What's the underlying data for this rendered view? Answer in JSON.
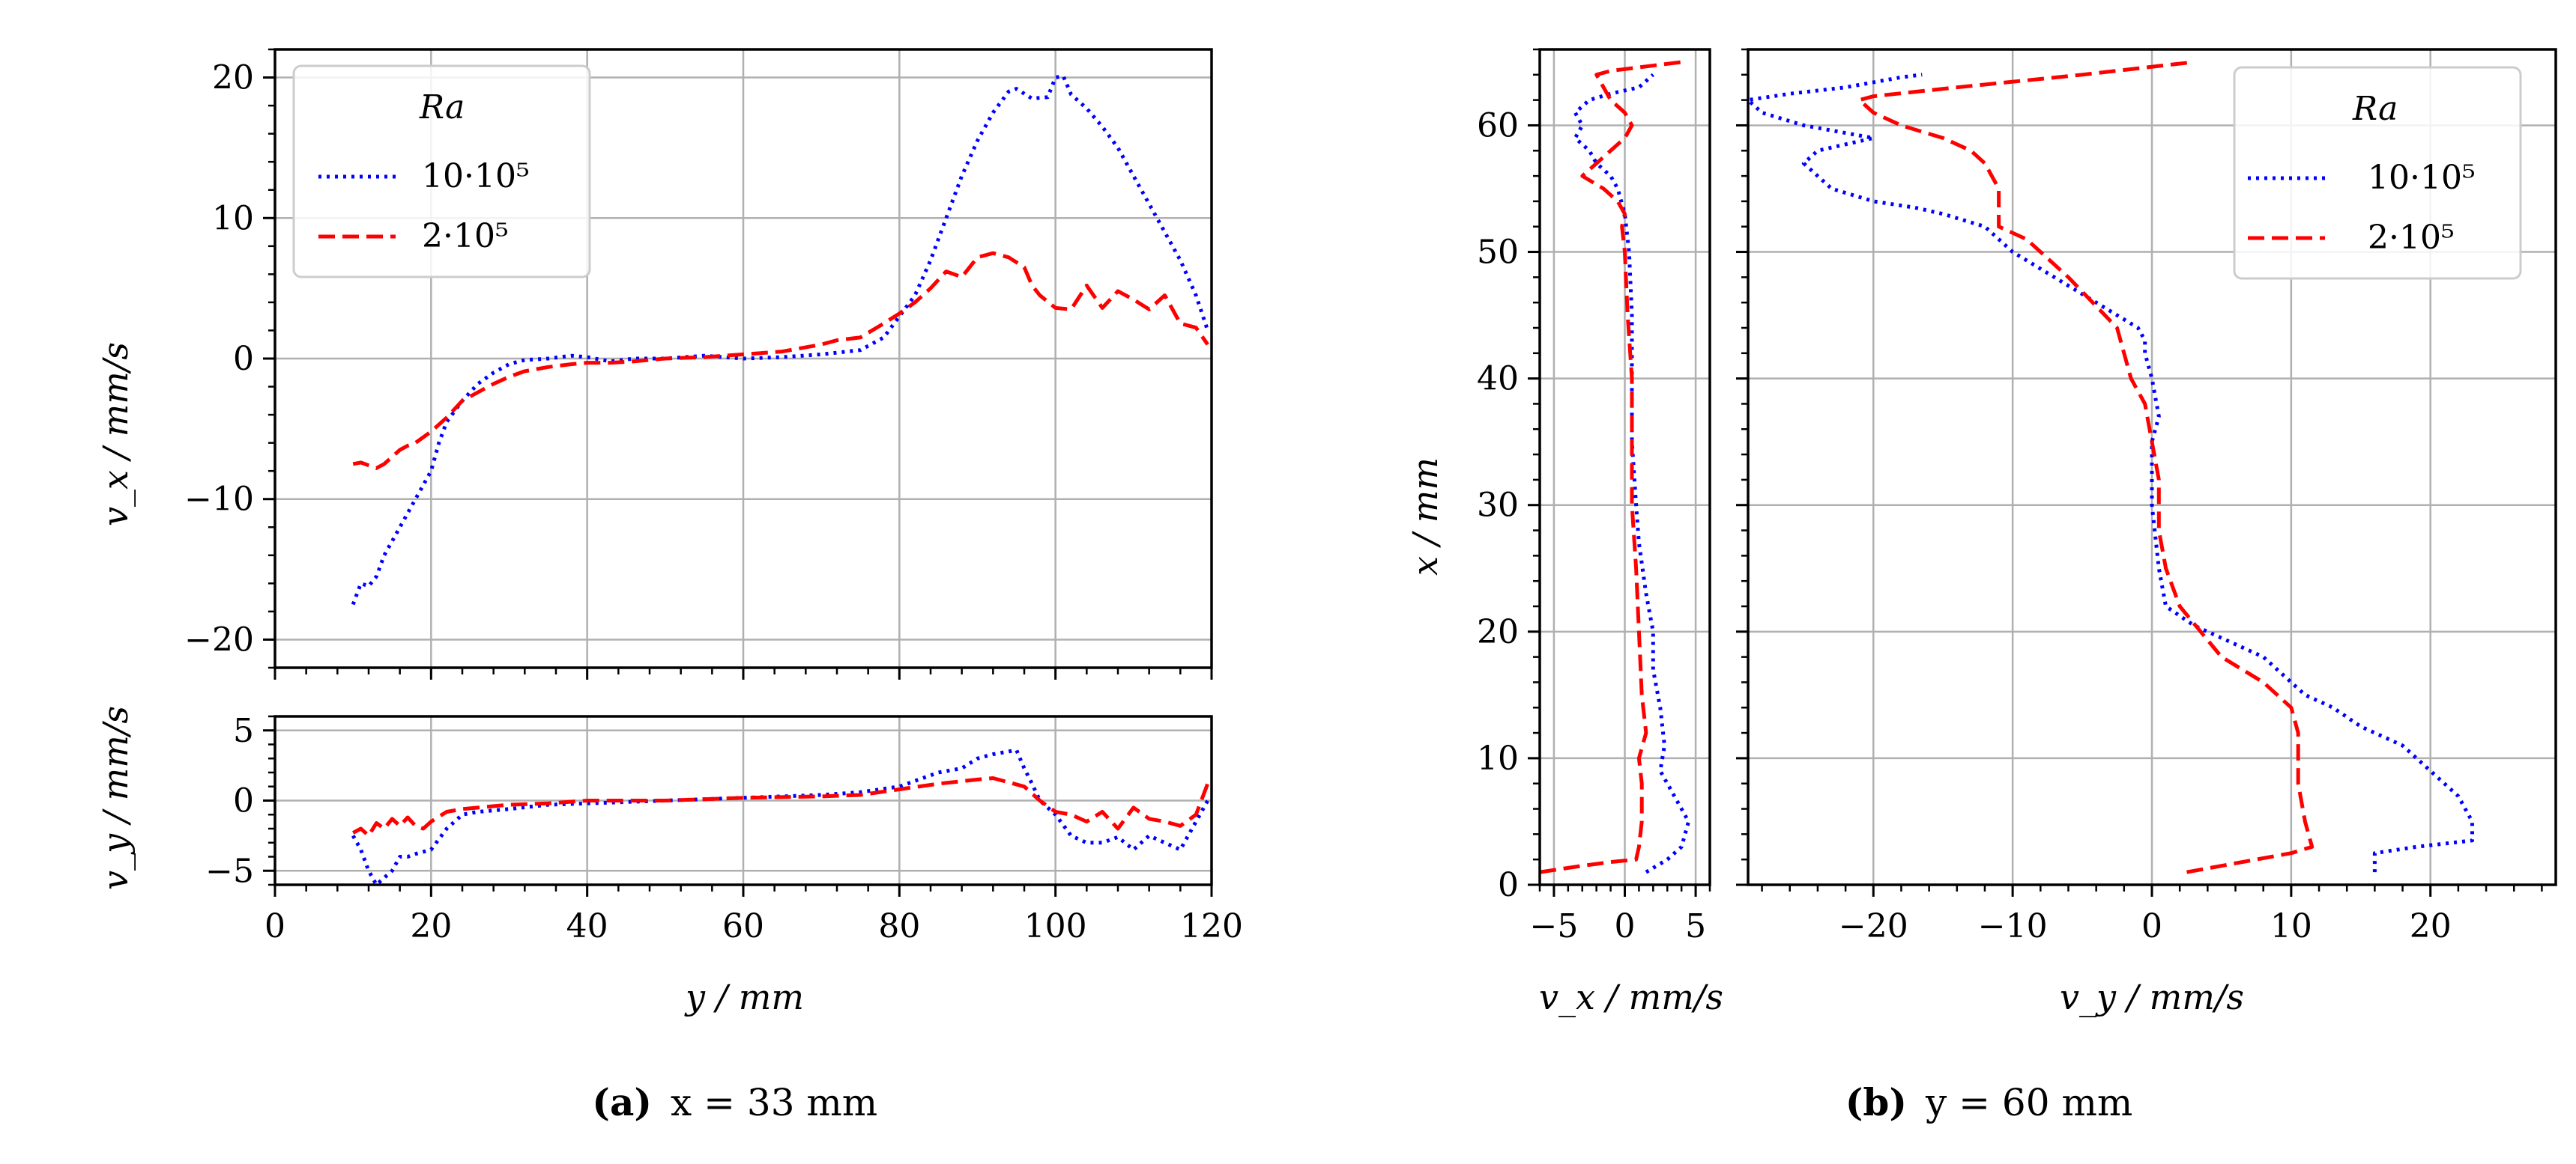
{
  "legend": {
    "title": "Ra",
    "entries": [
      {
        "label": "10·10⁵",
        "color": "#0000ff",
        "style": "dotted"
      },
      {
        "label": "2·10⁵",
        "color": "#ff0000",
        "style": "dashed"
      }
    ]
  },
  "captions": {
    "a": {
      "letter": "(a)",
      "text": "x = 33 mm"
    },
    "b": {
      "letter": "(b)",
      "text": "y = 60 mm"
    }
  },
  "axis_labels": {
    "a_top_y": "v_x / mm/s",
    "a_bottom_y": "v_y / mm/s",
    "a_x": "y / mm",
    "b_y": "x / mm",
    "b_left_x": "v_x / mm/s",
    "b_right_x": "v_y / mm/s"
  },
  "chart_data": [
    {
      "id": "a_top",
      "type": "line",
      "title": "",
      "xlabel": "",
      "ylabel": "v_x / mm/s",
      "xlim": [
        0,
        120
      ],
      "ylim": [
        -22,
        22
      ],
      "xticks": [
        0,
        20,
        40,
        60,
        80,
        100,
        120
      ],
      "yticks": [
        -20,
        -10,
        0,
        10,
        20
      ],
      "ytick_labels": [
        "−20",
        "−10",
        "0",
        "10",
        "20"
      ],
      "grid": true,
      "legend": "top-left",
      "series": [
        {
          "name": "10·10⁵",
          "color": "#0000ff",
          "style": "dotted",
          "x": [
            10,
            11,
            12,
            13,
            14,
            15,
            16,
            17,
            18,
            19,
            20,
            21,
            22,
            24,
            26,
            28,
            30,
            32,
            35,
            38,
            40,
            43,
            46,
            50,
            55,
            60,
            65,
            70,
            75,
            78,
            80,
            82,
            84,
            86,
            88,
            90,
            92,
            94,
            95,
            97,
            99,
            100,
            101,
            102,
            104,
            106,
            108,
            110,
            112,
            114,
            116,
            118,
            119.5
          ],
          "y": [
            -17.5,
            -16,
            -16.2,
            -15.5,
            -14,
            -13,
            -12,
            -11,
            -10,
            -9,
            -8,
            -6,
            -4.5,
            -3,
            -1.8,
            -1,
            -0.4,
            -0.1,
            0,
            0.2,
            0.1,
            -0.2,
            0,
            0,
            0.2,
            0,
            0.1,
            0.3,
            0.6,
            1.5,
            3,
            4.5,
            7,
            10,
            13,
            15.5,
            17.5,
            19,
            19.2,
            18.5,
            18.6,
            20,
            20.1,
            18.8,
            17.8,
            16.5,
            15,
            13,
            11,
            9,
            7,
            4.5,
            2
          ]
        },
        {
          "name": "2·10⁵",
          "color": "#ff0000",
          "style": "dashed",
          "x": [
            10,
            11,
            12,
            13,
            14,
            15,
            16,
            17,
            18,
            20,
            22,
            24,
            26,
            28,
            30,
            32,
            35,
            38,
            40,
            43,
            46,
            50,
            55,
            60,
            65,
            70,
            72,
            75,
            78,
            80,
            82,
            84,
            86,
            88,
            90,
            92,
            94,
            96,
            97,
            98,
            100,
            102,
            104,
            106,
            108,
            110,
            112,
            114,
            116,
            118,
            119.5
          ],
          "y": [
            -7.5,
            -7.4,
            -7.6,
            -7.8,
            -7.5,
            -7,
            -6.5,
            -6.2,
            -6,
            -5.2,
            -4.2,
            -3,
            -2.4,
            -1.8,
            -1.3,
            -0.9,
            -0.6,
            -0.4,
            -0.3,
            -0.3,
            -0.2,
            0,
            0.1,
            0.3,
            0.5,
            1,
            1.3,
            1.5,
            2.5,
            3.2,
            4,
            5,
            6.2,
            5.8,
            7.2,
            7.5,
            7.2,
            6.5,
            5.2,
            4.5,
            3.6,
            3.5,
            5.2,
            3.6,
            4.8,
            4.2,
            3.5,
            4.5,
            2.5,
            2.2,
            1
          ]
        }
      ]
    },
    {
      "id": "a_bottom",
      "type": "line",
      "xlabel": "y / mm",
      "ylabel": "v_y / mm/s",
      "xlim": [
        0,
        120
      ],
      "ylim": [
        -6,
        6
      ],
      "xticks": [
        0,
        20,
        40,
        60,
        80,
        100,
        120
      ],
      "xtick_labels": [
        "0",
        "20",
        "40",
        "60",
        "80",
        "100",
        "120"
      ],
      "yticks": [
        -5,
        0,
        5
      ],
      "ytick_labels": [
        "−5",
        "0",
        "5"
      ],
      "grid": true,
      "series": [
        {
          "name": "10·10⁵",
          "color": "#0000ff",
          "style": "dotted",
          "x": [
            10,
            11,
            12,
            13,
            14,
            15,
            16,
            17,
            18,
            20,
            22,
            24,
            26,
            30,
            35,
            40,
            50,
            60,
            70,
            75,
            80,
            85,
            88,
            90,
            92,
            94,
            95,
            96,
            97,
            98,
            100,
            102,
            104,
            106,
            108,
            110,
            112,
            114,
            116,
            118,
            119.5
          ],
          "y": [
            -2.5,
            -3.5,
            -5,
            -6,
            -5.5,
            -5,
            -4,
            -4,
            -3.8,
            -3.5,
            -2,
            -1,
            -0.8,
            -0.6,
            -0.3,
            -0.2,
            0,
            0.2,
            0.4,
            0.6,
            1,
            2,
            2.3,
            3,
            3.3,
            3.5,
            3.6,
            2.3,
            1.2,
            0,
            -1,
            -2.5,
            -3,
            -3,
            -2.6,
            -3.5,
            -2.5,
            -3,
            -3.5,
            -1.5,
            0
          ]
        },
        {
          "name": "2·10⁵",
          "color": "#ff0000",
          "style": "dashed",
          "x": [
            10,
            11,
            12,
            13,
            14,
            15,
            16,
            17,
            18,
            19,
            20,
            22,
            24,
            26,
            30,
            35,
            40,
            50,
            60,
            70,
            75,
            80,
            85,
            90,
            92,
            94,
            96,
            97,
            98,
            100,
            102,
            104,
            106,
            108,
            110,
            112,
            114,
            116,
            118,
            119.5
          ],
          "y": [
            -2.3,
            -2,
            -2.5,
            -1.6,
            -2,
            -1.3,
            -1.8,
            -1.2,
            -1.8,
            -2,
            -1.5,
            -0.8,
            -0.6,
            -0.5,
            -0.3,
            -0.2,
            0,
            0,
            0.2,
            0.3,
            0.4,
            0.8,
            1.2,
            1.5,
            1.6,
            1.3,
            1,
            0.5,
            0,
            -0.8,
            -1,
            -1.5,
            -0.8,
            -2,
            -0.5,
            -1.3,
            -1.5,
            -1.8,
            -1,
            1.2
          ]
        }
      ]
    },
    {
      "id": "b_left",
      "type": "line",
      "xlabel": "v_x / mm/s",
      "ylabel": "x / mm",
      "xlim": [
        -6,
        6
      ],
      "ylim": [
        0,
        66
      ],
      "xticks": [
        -5,
        0,
        5
      ],
      "xtick_labels": [
        "−5",
        "0",
        "5"
      ],
      "yticks": [
        0,
        10,
        20,
        30,
        40,
        50,
        60
      ],
      "ytick_labels": [
        "0",
        "10",
        "20",
        "30",
        "40",
        "50",
        "60"
      ],
      "grid": true,
      "series": [
        {
          "name": "10·10⁵",
          "color": "#0000ff",
          "style": "dotted",
          "x": [
            1.5,
            3,
            4,
            4.5,
            3.5,
            2.5,
            2.8,
            2.5,
            2,
            2,
            1.5,
            1,
            0.8,
            0.5,
            0.5,
            0.5,
            0.3,
            0,
            -0.5,
            -1,
            -2,
            -2.5,
            -3.5,
            -3,
            -3.5,
            -2.5,
            -1,
            1,
            2
          ],
          "y": [
            1,
            2,
            3,
            5,
            7,
            9,
            11,
            14,
            17,
            20,
            23,
            27,
            30,
            35,
            40,
            45,
            50,
            53,
            55,
            56,
            57,
            58,
            59,
            60,
            61,
            62,
            62.5,
            63,
            64
          ]
        },
        {
          "name": "2·10⁵",
          "color": "#ff0000",
          "style": "dashed",
          "x": [
            -6,
            -3,
            -1,
            0.8,
            1,
            1.2,
            1.2,
            1,
            1.5,
            1.2,
            1,
            0.8,
            0.5,
            0.5,
            0.5,
            0.2,
            0,
            -0.2,
            0,
            -0.5,
            -1.5,
            -3,
            -2,
            -1,
            0,
            0.5,
            0,
            -1,
            -2,
            -1,
            4
          ],
          "y": [
            1,
            1.5,
            1.8,
            2,
            3,
            5,
            8,
            10,
            12,
            15,
            20,
            25,
            30,
            35,
            40,
            45,
            50,
            52,
            53,
            54,
            55,
            56,
            57,
            58,
            59,
            60,
            61,
            62,
            64,
            64.3,
            65
          ]
        }
      ]
    },
    {
      "id": "b_right",
      "type": "line",
      "xlabel": "v_y / mm/s",
      "ylabel": "",
      "xlim": [
        -29,
        29
      ],
      "ylim": [
        0,
        66
      ],
      "xticks": [
        -20,
        -10,
        0,
        10,
        20
      ],
      "xtick_labels": [
        "−20",
        "−10",
        "0",
        "10",
        "20"
      ],
      "yticks": [
        0,
        10,
        20,
        30,
        40,
        50,
        60
      ],
      "grid": true,
      "legend": "top-right",
      "series": [
        {
          "name": "10·10⁵",
          "color": "#0000ff",
          "style": "dotted",
          "x": [
            16,
            16,
            19,
            23,
            23,
            22,
            20,
            18,
            15,
            13,
            11,
            10,
            8,
            5,
            3,
            1,
            0.5,
            0,
            0,
            0.5,
            0,
            -0.5,
            -0.5,
            -1,
            -4,
            -7,
            -10,
            -11,
            -12,
            -15,
            -17,
            -20,
            -23,
            -25,
            -24,
            -20,
            -25,
            -28,
            -29,
            -26,
            -22,
            -18,
            -16.5
          ],
          "y": [
            1,
            2.5,
            3,
            3.5,
            5,
            7,
            9,
            11,
            12.5,
            14,
            15,
            16,
            18,
            19.5,
            20.5,
            22,
            25,
            30,
            35,
            37,
            40,
            42,
            43,
            44,
            46,
            48,
            50,
            51,
            52,
            53,
            53.5,
            54,
            55,
            57,
            58,
            59,
            60,
            61,
            62,
            62.5,
            63,
            63.8,
            64
          ]
        },
        {
          "name": "2·10⁵",
          "color": "#ff0000",
          "style": "dashed",
          "x": [
            2.5,
            10,
            11.5,
            11,
            10.5,
            10.5,
            10.5,
            10,
            8,
            5,
            2,
            1,
            0.5,
            0.5,
            0,
            -0.5,
            -1.5,
            -2.5,
            -6,
            -9,
            -11,
            -11,
            -12,
            -13,
            -15,
            -18,
            -20,
            -21,
            -20,
            -14,
            -5,
            3
          ],
          "y": [
            1,
            2.5,
            3,
            5,
            8,
            10,
            12,
            14,
            16,
            18,
            22,
            25,
            28,
            32,
            35,
            38,
            40,
            44,
            48,
            51,
            52,
            55,
            57,
            58,
            59,
            60,
            61,
            62,
            62.3,
            63,
            64,
            65
          ]
        }
      ]
    }
  ]
}
